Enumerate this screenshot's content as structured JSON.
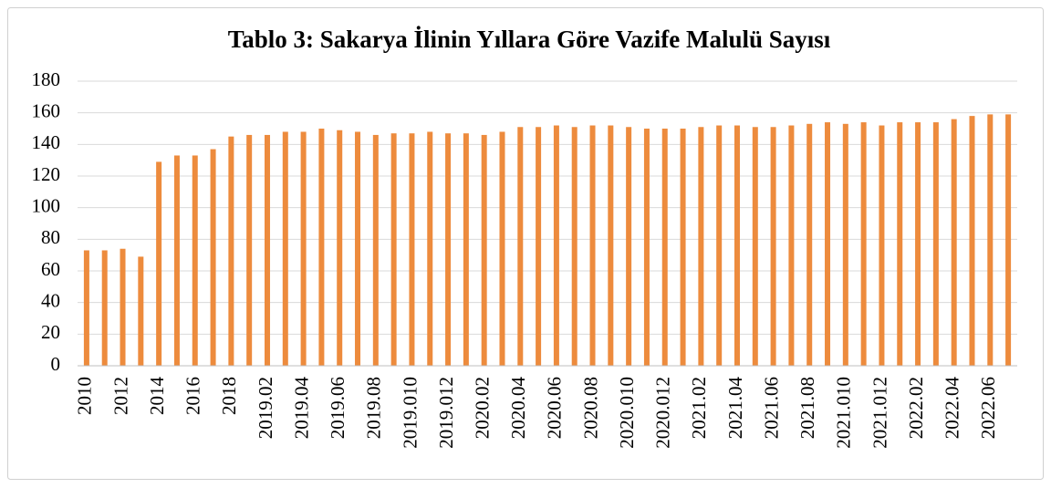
{
  "chart_data": {
    "type": "bar",
    "title": "Tablo 3: Sakarya İlinin Yıllara Göre Vazife Malulü Sayısı",
    "categories": [
      "2010",
      null,
      "2012",
      null,
      "2014",
      null,
      "2016",
      null,
      "2018",
      null,
      "2019.02",
      null,
      "2019.04",
      null,
      "2019.06",
      null,
      "2019.08",
      null,
      "2019.010",
      null,
      "2019.012",
      null,
      "2020.02",
      null,
      "2020.04",
      null,
      "2020.06",
      null,
      "2020.08",
      null,
      "2020.010",
      null,
      "2020.012",
      null,
      "2021.02",
      null,
      "2021.04",
      null,
      "2021.06",
      null,
      "2021.08",
      null,
      "2021.010",
      null,
      "2021.012",
      null,
      "2022.02",
      null,
      "2022.04",
      null,
      "2022.06",
      null
    ],
    "values": [
      73,
      73,
      74,
      69,
      129,
      133,
      133,
      137,
      145,
      146,
      146,
      148,
      148,
      150,
      149,
      148,
      146,
      147,
      147,
      148,
      147,
      147,
      146,
      148,
      151,
      151,
      152,
      151,
      152,
      152,
      151,
      150,
      150,
      150,
      151,
      152,
      152,
      151,
      151,
      152,
      153,
      154,
      153,
      154,
      152,
      154,
      154,
      154,
      156,
      158,
      159,
      159
    ],
    "color": "#ed8b3d",
    "ylim": [
      0,
      180
    ],
    "yticks": [
      0,
      20,
      40,
      60,
      80,
      100,
      120,
      140,
      160,
      180
    ],
    "grid": true
  }
}
